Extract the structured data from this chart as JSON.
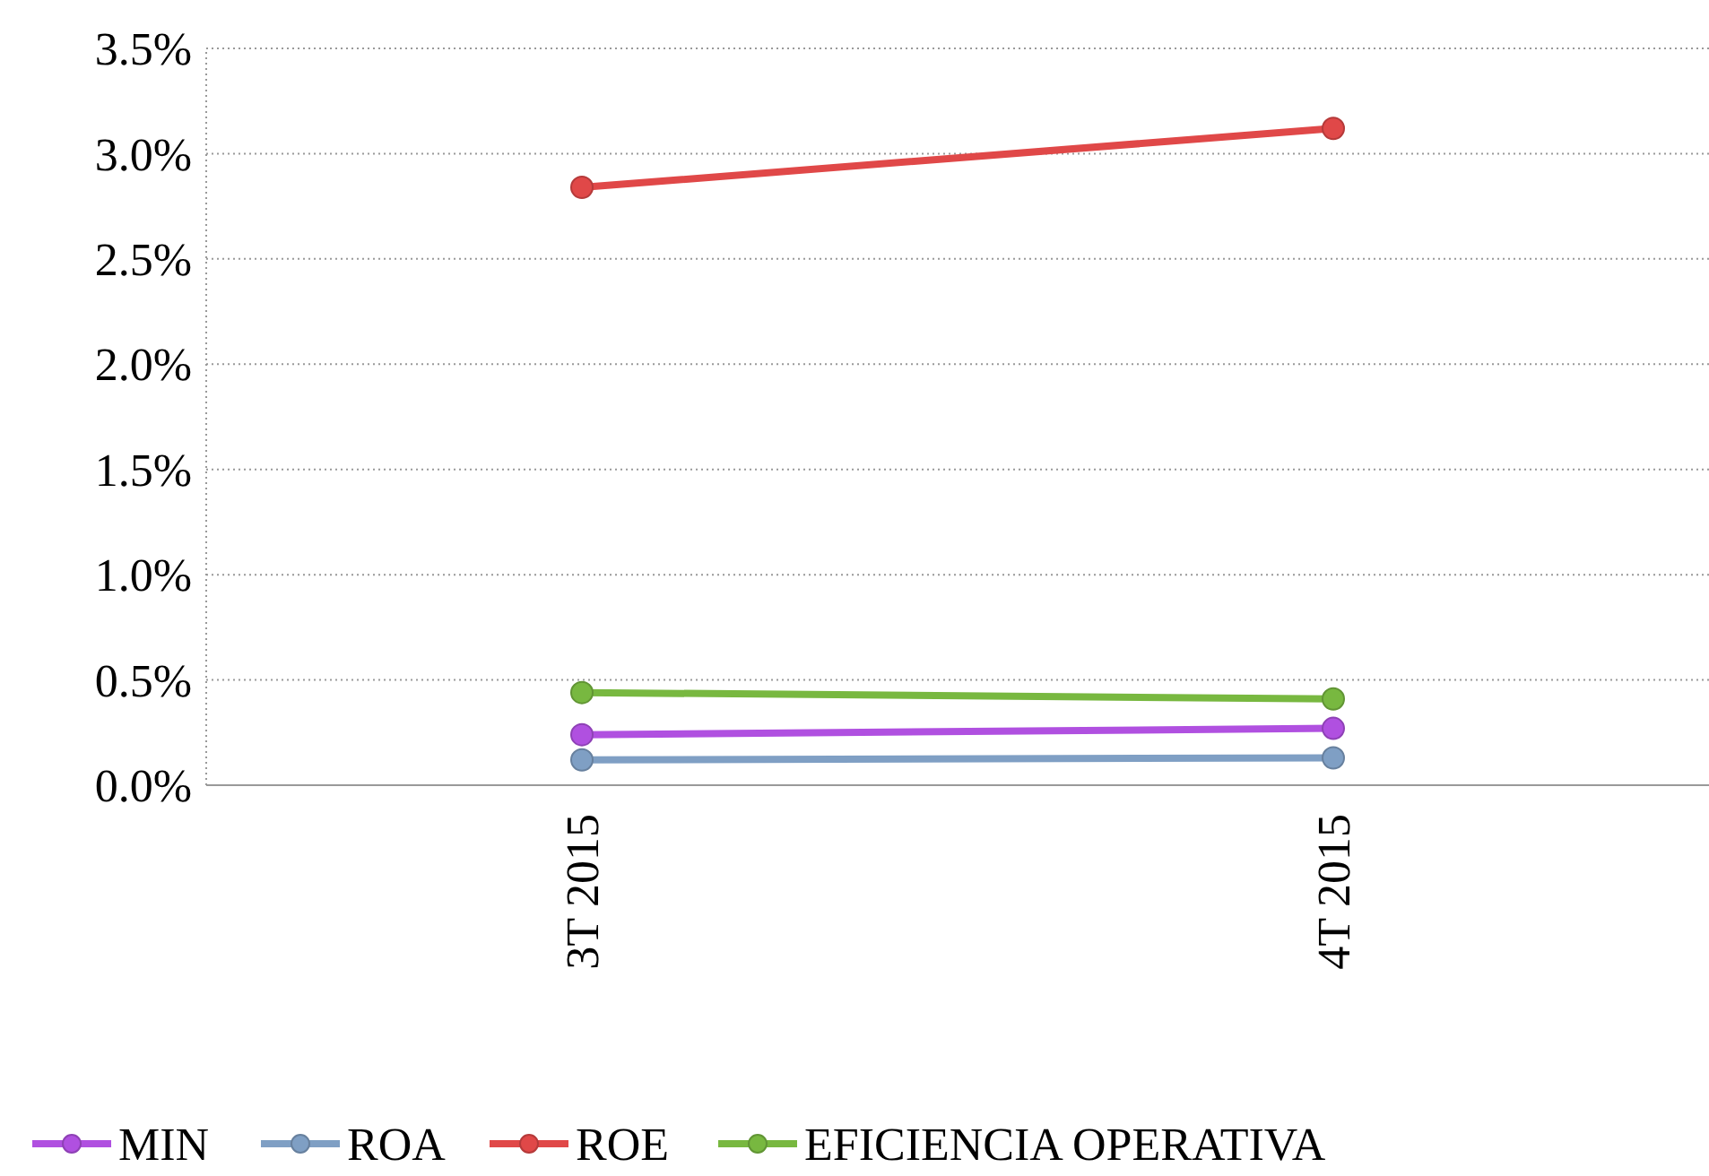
{
  "chart_data": {
    "type": "line",
    "categories": [
      "3T 2015",
      "4T 2015"
    ],
    "series": [
      {
        "name": "MIN",
        "color": "#b050e0",
        "values": [
          0.24,
          0.27
        ]
      },
      {
        "name": "ROA",
        "color": "#7f9fc4",
        "values": [
          0.12,
          0.13
        ]
      },
      {
        "name": "ROE",
        "color": "#e04848",
        "values": [
          2.84,
          3.12
        ]
      },
      {
        "name": "EFICIENCIA OPERATIVA",
        "color": "#78b840",
        "values": [
          0.44,
          0.41
        ]
      }
    ],
    "ylim": [
      0,
      3.5
    ],
    "yticks": [
      {
        "value": 0,
        "label": "0.0%"
      },
      {
        "value": 0.5,
        "label": "0.5%"
      },
      {
        "value": 1,
        "label": "1.0%"
      },
      {
        "value": 1.5,
        "label": "1.5%"
      },
      {
        "value": 2,
        "label": "2.0%"
      },
      {
        "value": 2.5,
        "label": "2.5%"
      },
      {
        "value": 3,
        "label": "3.0%"
      },
      {
        "value": 3.5,
        "label": "3.5%"
      }
    ],
    "grid": "y",
    "legend": "bottom",
    "marker": "circle",
    "line_style": "solid"
  }
}
